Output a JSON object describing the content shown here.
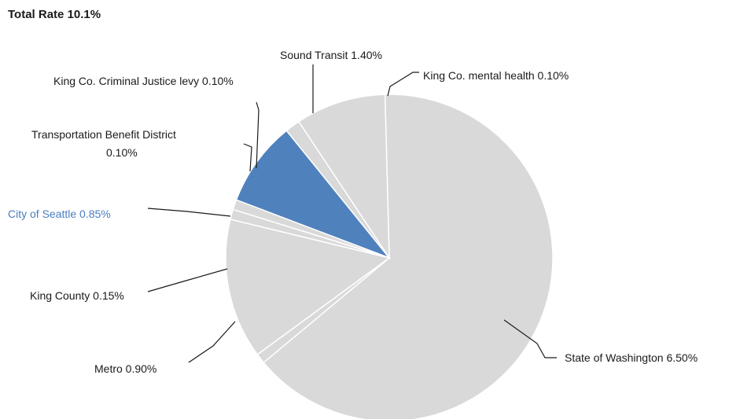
{
  "chart_data": {
    "type": "pie",
    "title": "Total Rate 10.1%",
    "total": 10.1,
    "unit": "%",
    "slices": [
      {
        "name": "State of Washington",
        "value": 6.5,
        "label": "State of Washington 6.50%",
        "color": "#d9d9d9",
        "highlight": false
      },
      {
        "name": "King Co. mental health",
        "value": 0.1,
        "label": "King Co. mental health 0.10%",
        "color": "#d9d9d9",
        "highlight": false
      },
      {
        "name": "Sound Transit",
        "value": 1.4,
        "label": "Sound Transit 1.40%",
        "color": "#d9d9d9",
        "highlight": false
      },
      {
        "name": "King Co. Criminal Justice levy",
        "value": 0.1,
        "label": "King Co. Criminal Justice levy 0.10%",
        "color": "#d9d9d9",
        "highlight": false
      },
      {
        "name": "Transportation Benefit District",
        "value": 0.1,
        "label": [
          "Transportation Benefit District",
          "0.10%"
        ],
        "color": "#d9d9d9",
        "highlight": false
      },
      {
        "name": "City of Seattle",
        "value": 0.85,
        "label": "City of Seattle 0.85%",
        "color": "#4f81bd",
        "highlight": true
      },
      {
        "name": "King County",
        "value": 0.15,
        "label": "King County 0.15%",
        "color": "#d9d9d9",
        "highlight": false
      },
      {
        "name": "Metro",
        "value": 0.9,
        "label": "Metro 0.90%",
        "color": "#d9d9d9",
        "highlight": false
      }
    ],
    "legend": "none"
  }
}
